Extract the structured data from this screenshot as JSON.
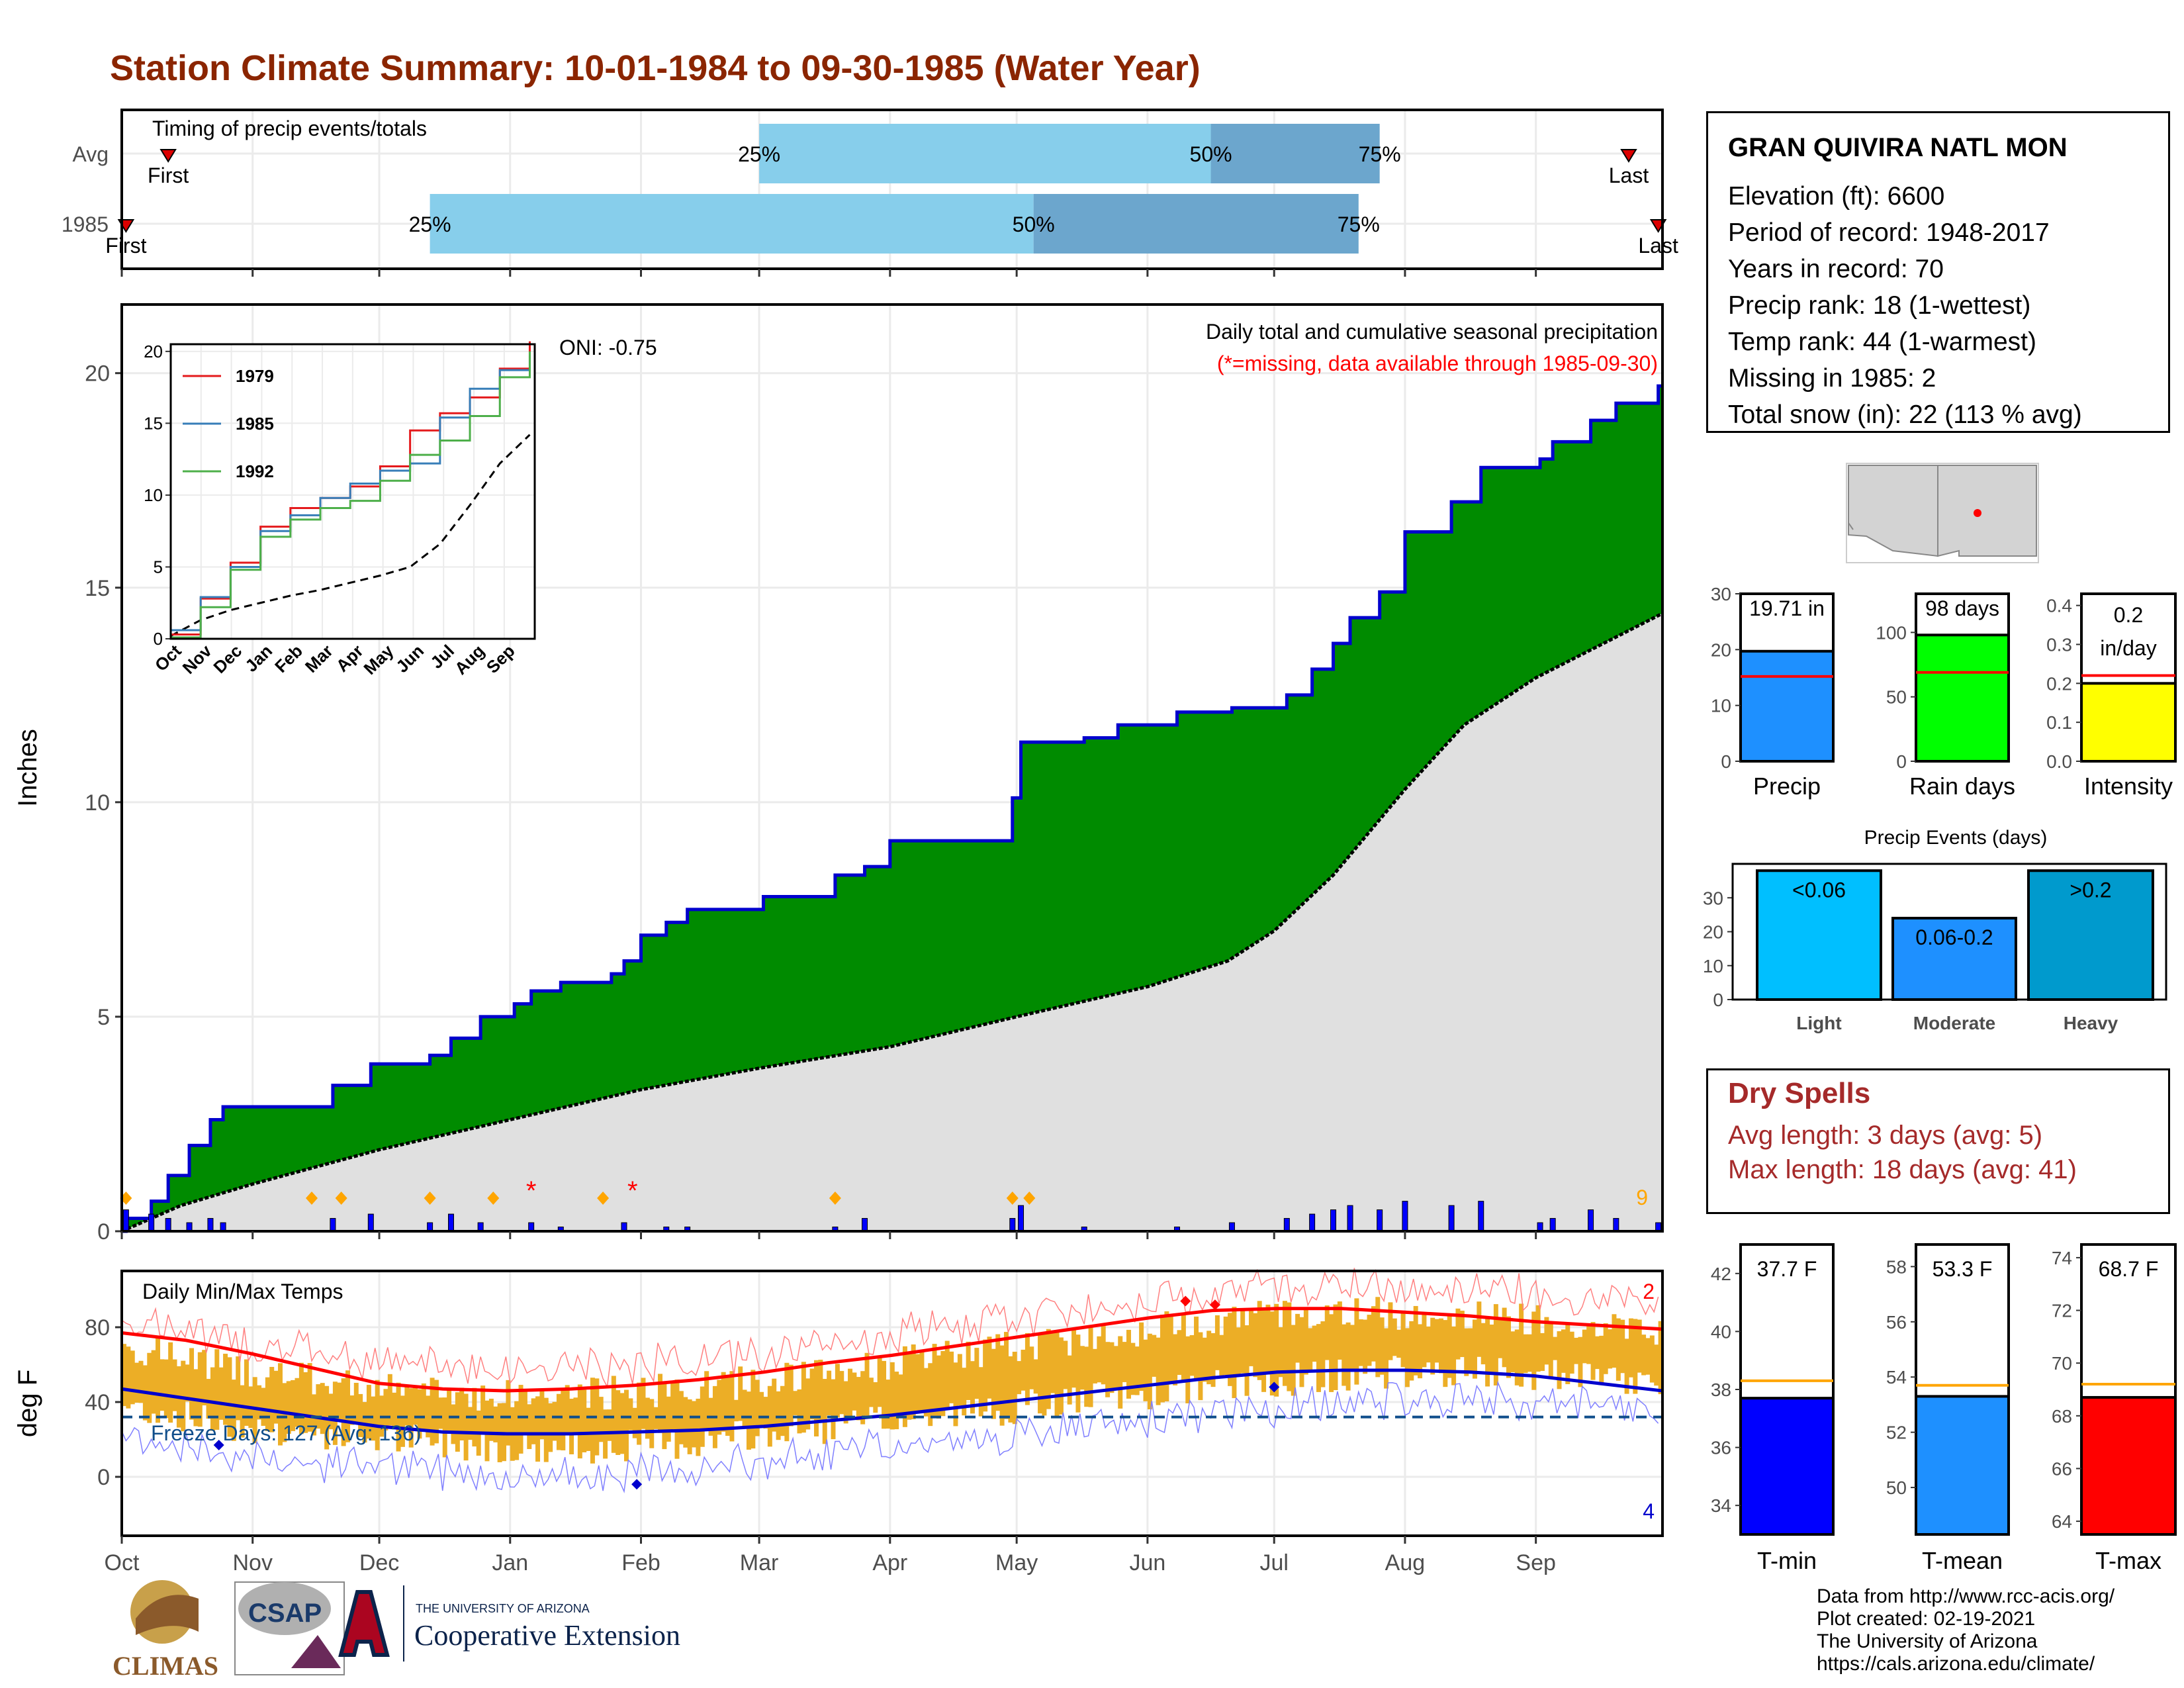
{
  "title": "Station Climate Summary: 10-01-1984 to 09-30-1985 (Water Year)",
  "timing": {
    "title": "Timing of precip events/totals",
    "rows": [
      {
        "label": "Avg",
        "first_label": "First",
        "last_label": "Last",
        "first": "1984-10-12",
        "q25": "1985-03-01",
        "q50": "1985-06-16",
        "q75": "1985-07-26",
        "last": "1985-09-23"
      },
      {
        "label": "1985",
        "first_label": "First",
        "last_label": "Last",
        "first": "1984-10-02",
        "q25": "1984-12-13",
        "q50": "1985-05-05",
        "q75": "1985-07-21",
        "last": "1985-09-30"
      }
    ],
    "q25_label": "25%",
    "q50_label": "50%",
    "q75_label": "75%",
    "colors": {
      "light": "#87ceeb",
      "dark": "#6ca6cd"
    }
  },
  "station": {
    "name": "GRAN QUIVIRA NATL MON",
    "lines": [
      "Elevation (ft): 6600",
      "Period of record: 1948-2017",
      "Years in record: 70",
      "Precip rank: 18 (1-wettest)",
      "Temp rank: 44 (1-warmest)",
      "Missing in 1985: 2",
      "Total snow (in): 22 (113 % avg)"
    ]
  },
  "precip_panel": {
    "oni": "ONI: -0.75",
    "note1": "Daily total and cumulative seasonal precipitation",
    "note2": "(*=missing, data available through 1985-09-30)",
    "ylabel": "Inches",
    "yticks": [
      "0",
      "5",
      "10",
      "15",
      "20"
    ],
    "count_label": "9",
    "colors": {
      "observed": "#008b00",
      "outline": "#0000cd",
      "average": "#e0e0e0",
      "bars": "#0000ff",
      "markers": "#ffa500",
      "missing": "#ff0000"
    }
  },
  "months": [
    "Oct",
    "Nov",
    "Dec",
    "Jan",
    "Feb",
    "Mar",
    "Apr",
    "May",
    "Jun",
    "Jul",
    "Aug",
    "Sep"
  ],
  "temp_panel": {
    "title": "Daily Min/Max Temps",
    "ylabel": "deg F",
    "yticks": [
      "0",
      "40",
      "80"
    ],
    "freeze": "Freeze Days: 127 (Avg: 136)",
    "max_count": "2",
    "min_count": "4",
    "colors": {
      "bars": "#ecae26",
      "max_line": "#ff0000",
      "min_line": "#0000cd"
    }
  },
  "summary_bars": [
    {
      "xlabel": "Precip",
      "label": "19.71 in",
      "value": 19.71,
      "avg": 15.2,
      "ymax": 30,
      "yticks": [
        "0",
        "10",
        "20",
        "30"
      ],
      "color": "#1e90ff"
    },
    {
      "xlabel": "Rain days",
      "label": "98 days",
      "value": 98,
      "avg": 69,
      "ymax": 130,
      "yticks": [
        "0",
        "50",
        "100"
      ],
      "color": "#00ff00"
    },
    {
      "xlabel": "Intensity",
      "label": "0.2 in/day",
      "value": 0.2,
      "avg": 0.22,
      "ymax": 0.43,
      "yticks": [
        "0.0",
        "0.1",
        "0.2",
        "0.3",
        "0.4"
      ],
      "color": "#ffff00"
    }
  ],
  "events": {
    "title": "Precip Events (days)",
    "yticks": [
      "0",
      "10",
      "20",
      "30"
    ],
    "categories": [
      "Light",
      "Moderate",
      "Heavy"
    ],
    "bar_labels": [
      "<0.06",
      "0.06-0.2",
      ">0.2"
    ],
    "values": [
      38,
      24,
      38
    ],
    "colors": [
      "#00bfff",
      "#1e90ff",
      "#009acd"
    ]
  },
  "dry_spells": {
    "title": "Dry Spells",
    "avg": "Avg length: 3 days (avg: 5)",
    "max": "Max length: 18 days (avg: 41)"
  },
  "temp_bars": [
    {
      "xlabel": "T-min",
      "label": "37.7 F",
      "value": 37.7,
      "avg": 38.3,
      "ylim": [
        33,
        43
      ],
      "yticks": [
        "34",
        "36",
        "38",
        "40",
        "42"
      ],
      "color": "#0000ff"
    },
    {
      "xlabel": "T-mean",
      "label": "53.3 F",
      "value": 53.3,
      "avg": 53.7,
      "ylim": [
        48.3,
        58.8
      ],
      "yticks": [
        "50",
        "52",
        "54",
        "56",
        "58"
      ],
      "color": "#1e90ff"
    },
    {
      "xlabel": "T-max",
      "label": "68.7 F",
      "value": 68.7,
      "avg": 69.2,
      "ylim": [
        63.5,
        74.5
      ],
      "yticks": [
        "64",
        "66",
        "68",
        "70",
        "72",
        "74"
      ],
      "color": "#ff0000"
    }
  ],
  "chart_data": [
    {
      "type": "line",
      "title": "",
      "series": [
        {
          "name": "1979",
          "color": "#e41a1c",
          "x": [
            0,
            30,
            60,
            90,
            120,
            150,
            180,
            210,
            240,
            270,
            300,
            330,
            360
          ],
          "y": [
            0.3,
            2.8,
            5.3,
            7.8,
            9.1,
            9.8,
            10.6,
            12.0,
            14.5,
            15.7,
            16.8,
            18.8,
            20.7
          ]
        },
        {
          "name": "1985",
          "color": "#377eb8",
          "x": [
            0,
            30,
            60,
            90,
            120,
            150,
            180,
            210,
            240,
            270,
            300,
            330,
            360
          ],
          "y": [
            0.6,
            2.9,
            5.0,
            7.5,
            8.6,
            9.8,
            10.8,
            11.7,
            12.2,
            15.4,
            17.4,
            18.7,
            19.7
          ]
        },
        {
          "name": "1992",
          "color": "#4daf4a",
          "x": [
            0,
            30,
            60,
            90,
            120,
            150,
            180,
            210,
            240,
            270,
            300,
            330,
            360
          ],
          "y": [
            0.1,
            2.2,
            4.8,
            7.1,
            8.3,
            9.1,
            9.6,
            11.0,
            12.8,
            13.8,
            15.5,
            18.2,
            20.0
          ]
        }
      ],
      "average_series": {
        "x": [
          0,
          30,
          60,
          90,
          120,
          150,
          180,
          210,
          240,
          270,
          300,
          330,
          360
        ],
        "y": [
          0.2,
          1.3,
          2.0,
          2.5,
          3.0,
          3.4,
          3.9,
          4.4,
          5.0,
          6.6,
          9.3,
          12.2,
          14.2
        ]
      },
      "xticks": [
        "Oct",
        "Nov",
        "Dec",
        "Jan",
        "Feb",
        "Mar",
        "Apr",
        "May",
        "Jun",
        "Jul",
        "Aug",
        "Sep"
      ],
      "yticks": [
        "0",
        "5",
        "10",
        "15",
        "20"
      ],
      "ylim": [
        0,
        20
      ]
    },
    {
      "type": "area",
      "title": "",
      "ylabel": "Inches",
      "ylim": [
        0,
        21
      ],
      "observed_cumulative": [
        [
          "1984-10-01",
          0.0
        ],
        [
          "1984-10-02",
          0.3
        ],
        [
          "1984-10-08",
          0.7
        ],
        [
          "1984-10-12",
          1.3
        ],
        [
          "1984-10-17",
          2.0
        ],
        [
          "1984-10-22",
          2.6
        ],
        [
          "1984-10-25",
          2.9
        ],
        [
          "1984-11-20",
          3.4
        ],
        [
          "1984-11-29",
          3.9
        ],
        [
          "1984-12-13",
          4.1
        ],
        [
          "1984-12-18",
          4.5
        ],
        [
          "1984-12-25",
          5.0
        ],
        [
          "1985-01-02",
          5.3
        ],
        [
          "1985-01-06",
          5.6
        ],
        [
          "1985-01-13",
          5.8
        ],
        [
          "1985-01-25",
          6.0
        ],
        [
          "1985-01-28",
          6.3
        ],
        [
          "1985-02-01",
          6.9
        ],
        [
          "1985-02-07",
          7.2
        ],
        [
          "1985-02-12",
          7.5
        ],
        [
          "1985-03-02",
          7.8
        ],
        [
          "1985-03-19",
          8.3
        ],
        [
          "1985-03-26",
          8.5
        ],
        [
          "1985-04-01",
          9.1
        ],
        [
          "1985-04-30",
          10.1
        ],
        [
          "1985-05-02",
          11.4
        ],
        [
          "1985-05-17",
          11.5
        ],
        [
          "1985-05-25",
          11.8
        ],
        [
          "1985-06-08",
          12.1
        ],
        [
          "1985-06-21",
          12.2
        ],
        [
          "1985-07-04",
          12.5
        ],
        [
          "1985-07-10",
          13.1
        ],
        [
          "1985-07-15",
          13.7
        ],
        [
          "1985-07-19",
          14.3
        ],
        [
          "1985-07-26",
          14.9
        ],
        [
          "1985-08-01",
          16.3
        ],
        [
          "1985-08-12",
          17.0
        ],
        [
          "1985-08-19",
          17.8
        ],
        [
          "1985-09-02",
          18.0
        ],
        [
          "1985-09-05",
          18.4
        ],
        [
          "1985-09-14",
          18.9
        ],
        [
          "1985-09-20",
          19.3
        ],
        [
          "1985-09-30",
          19.7
        ]
      ],
      "average_cumulative": [
        [
          "1984-10-01",
          0.0
        ],
        [
          "1984-10-15",
          0.6
        ],
        [
          "1984-11-01",
          1.1
        ],
        [
          "1984-12-01",
          1.9
        ],
        [
          "1985-01-01",
          2.6
        ],
        [
          "1985-02-01",
          3.3
        ],
        [
          "1985-03-01",
          3.8
        ],
        [
          "1985-04-01",
          4.3
        ],
        [
          "1985-05-01",
          5.0
        ],
        [
          "1985-06-01",
          5.7
        ],
        [
          "1985-06-20",
          6.3
        ],
        [
          "1985-07-01",
          7.0
        ],
        [
          "1985-07-15",
          8.3
        ],
        [
          "1985-08-01",
          10.3
        ],
        [
          "1985-08-15",
          11.8
        ],
        [
          "1985-09-01",
          12.9
        ],
        [
          "1985-09-30",
          14.4
        ]
      ],
      "daily_precip": [
        [
          "1984-10-02",
          0.5
        ],
        [
          "1984-10-08",
          0.4
        ],
        [
          "1984-10-12",
          0.3
        ],
        [
          "1984-10-17",
          0.2
        ],
        [
          "1984-10-22",
          0.3
        ],
        [
          "1984-10-25",
          0.2
        ],
        [
          "1984-11-20",
          0.3
        ],
        [
          "1984-11-29",
          0.4
        ],
        [
          "1984-12-13",
          0.2
        ],
        [
          "1984-12-18",
          0.4
        ],
        [
          "1984-12-25",
          0.2
        ],
        [
          "1985-01-06",
          0.2
        ],
        [
          "1985-01-13",
          0.1
        ],
        [
          "1985-01-28",
          0.2
        ],
        [
          "1985-02-07",
          0.1
        ],
        [
          "1985-02-12",
          0.1
        ],
        [
          "1985-03-19",
          0.1
        ],
        [
          "1985-03-26",
          0.3
        ],
        [
          "1985-04-30",
          0.3
        ],
        [
          "1985-05-02",
          0.6
        ],
        [
          "1985-05-17",
          0.1
        ],
        [
          "1985-06-08",
          0.1
        ],
        [
          "1985-06-21",
          0.2
        ],
        [
          "1985-07-04",
          0.3
        ],
        [
          "1985-07-10",
          0.4
        ],
        [
          "1985-07-15",
          0.5
        ],
        [
          "1985-07-19",
          0.6
        ],
        [
          "1985-07-26",
          0.5
        ],
        [
          "1985-08-01",
          0.7
        ],
        [
          "1985-08-12",
          0.6
        ],
        [
          "1985-08-19",
          0.7
        ],
        [
          "1985-09-02",
          0.2
        ],
        [
          "1985-09-05",
          0.3
        ],
        [
          "1985-09-14",
          0.5
        ],
        [
          "1985-09-20",
          0.3
        ],
        [
          "1985-09-30",
          0.2
        ]
      ],
      "marked_days": [
        "1984-10-02",
        "1984-11-15",
        "1984-11-22",
        "1984-12-13",
        "1984-12-28",
        "1985-01-23",
        "1985-03-19",
        "1985-04-30",
        "1985-05-04"
      ],
      "missing_days": [
        "1985-01-06",
        "1985-01-30"
      ]
    },
    {
      "type": "bar",
      "title": "",
      "ylabel": "deg F",
      "ylim": [
        -40,
        110
      ],
      "daily_range_monthly": [
        {
          "month": "Oct",
          "tmin": 38,
          "tmax": 70
        },
        {
          "month": "Nov",
          "tmin": 25,
          "tmax": 55
        },
        {
          "month": "Dec",
          "tmin": 20,
          "tmax": 46
        },
        {
          "month": "Jan",
          "tmin": 15,
          "tmax": 43
        },
        {
          "month": "Feb",
          "tmin": 18,
          "tmax": 47
        },
        {
          "month": "Mar",
          "tmin": 26,
          "tmax": 55
        },
        {
          "month": "Apr",
          "tmin": 34,
          "tmax": 66
        },
        {
          "month": "May",
          "tmin": 42,
          "tmax": 76
        },
        {
          "month": "Jun",
          "tmin": 50,
          "tmax": 86
        },
        {
          "month": "Jul",
          "tmin": 56,
          "tmax": 88
        },
        {
          "month": "Aug",
          "tmin": 55,
          "tmax": 85
        },
        {
          "month": "Sep",
          "tmin": 49,
          "tmax": 78
        }
      ],
      "avg_max": [
        77,
        73,
        66,
        58,
        50,
        47,
        46,
        47,
        49,
        52,
        56,
        61,
        65,
        70,
        75,
        80,
        85,
        89,
        90,
        90,
        88,
        86,
        83,
        81,
        79
      ],
      "avg_min": [
        47,
        42,
        37,
        32,
        27,
        24,
        23,
        23,
        24,
        25,
        27,
        30,
        33,
        37,
        41,
        45,
        49,
        53,
        56,
        57,
        57,
        56,
        54,
        50,
        46
      ],
      "freeze_line": 32
    },
    {
      "type": "bar",
      "categories": [
        "Precip"
      ],
      "values": [
        19.71
      ],
      "average": 15.2,
      "unit": "in"
    },
    {
      "type": "bar",
      "categories": [
        "Rain days"
      ],
      "values": [
        98
      ],
      "average": 69,
      "unit": "days"
    },
    {
      "type": "bar",
      "categories": [
        "Intensity"
      ],
      "values": [
        0.2
      ],
      "average": 0.22,
      "unit": "in/day"
    },
    {
      "type": "bar",
      "title": "Precip Events (days)",
      "categories": [
        "Light",
        "Moderate",
        "Heavy"
      ],
      "values": [
        38,
        24,
        38
      ]
    },
    {
      "type": "bar",
      "categories": [
        "T-min",
        "T-mean",
        "T-max"
      ],
      "values": [
        37.7,
        53.3,
        68.7
      ],
      "averages": [
        38.3,
        53.7,
        69.2
      ],
      "unit": "F"
    }
  ]
}
